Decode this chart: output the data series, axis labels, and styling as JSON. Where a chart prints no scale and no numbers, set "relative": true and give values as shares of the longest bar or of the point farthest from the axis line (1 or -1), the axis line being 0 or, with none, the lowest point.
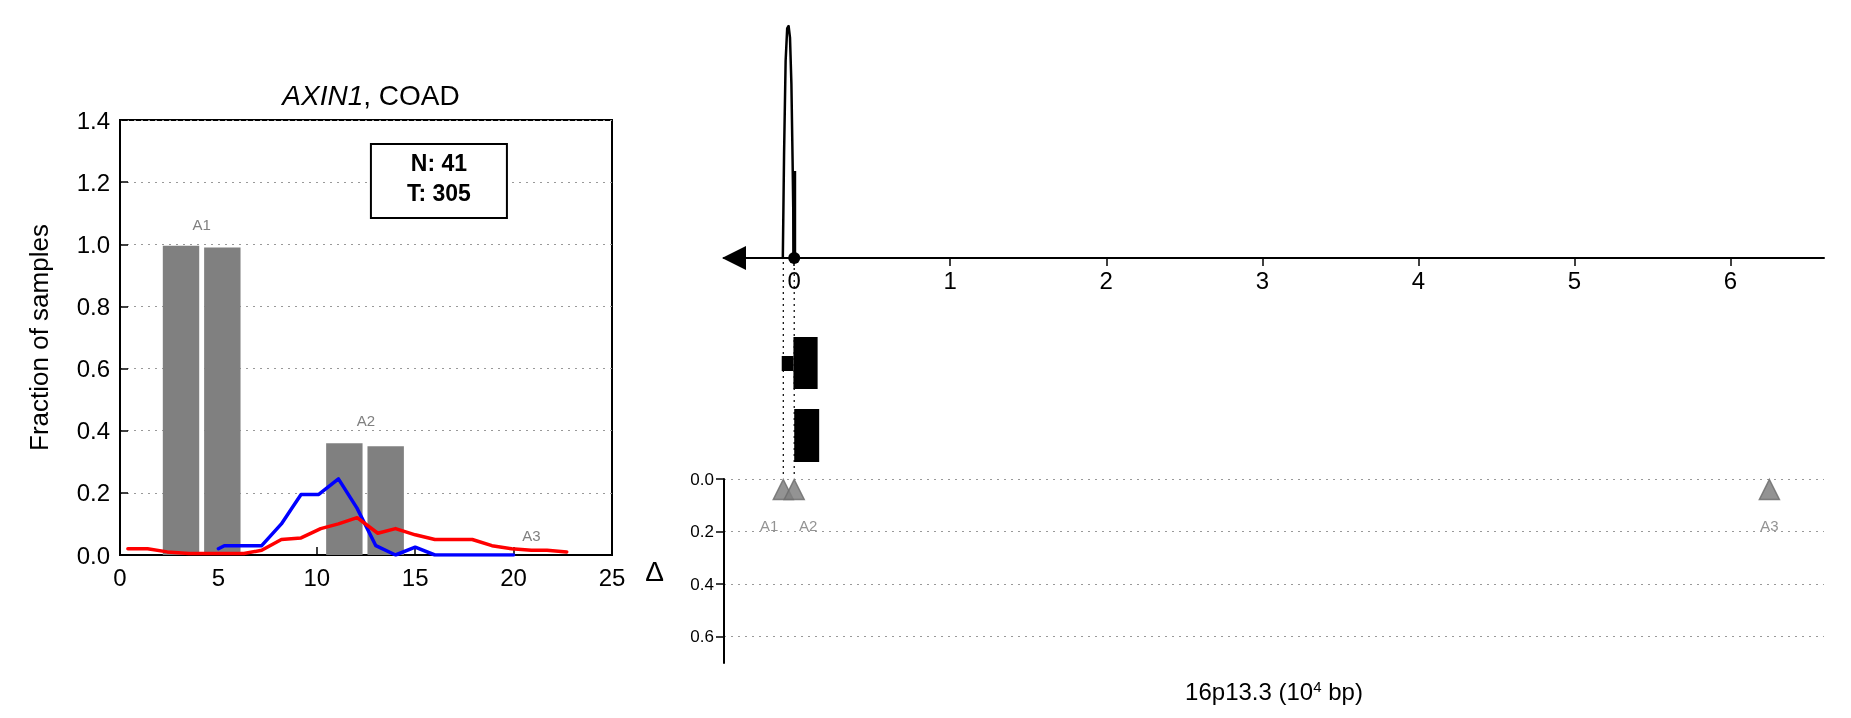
{
  "chart_data": [
    {
      "type": "bar",
      "title": "AXIN1, COAD",
      "ylabel": "Fraction of samples",
      "xlim": [
        0,
        25
      ],
      "xticks": [
        0,
        5,
        10,
        15,
        20,
        25
      ],
      "ylim": [
        0,
        1.4
      ],
      "yticks": [
        {
          "value": 0,
          "label": "0.0"
        },
        {
          "value": 0.2,
          "label": "0.2"
        },
        {
          "value": 0.4,
          "label": "0.4"
        },
        {
          "value": 0.6,
          "label": "0.6"
        },
        {
          "value": 0.8,
          "label": "0.8"
        },
        {
          "value": 1,
          "label": "1.0"
        },
        {
          "value": 1.2,
          "label": "1.2"
        },
        {
          "value": 1.4,
          "label": "1.4"
        }
      ],
      "grid": "y",
      "annotations": [
        "A1",
        "A2",
        "A3",
        "N: 41",
        "T: 305"
      ],
      "series": [
        {
          "color": "#808080",
          "x": [
            3.1,
            5.2,
            11.4,
            13.5
          ],
          "values": [
            0.995,
            0.99,
            0.36,
            0.35
          ]
        },
        {
          "type": "line",
          "color": "#0000ff",
          "x": [
            5,
            5.3,
            7.2,
            8.2,
            9.2,
            10.1,
            11.1,
            12.05,
            13,
            14,
            15,
            16,
            17,
            18,
            19,
            20
          ],
          "values": [
            0.02,
            0.03,
            0.03,
            0.1,
            0.195,
            0.195,
            0.245,
            0.15,
            0.03,
            0,
            0.025,
            0,
            0,
            0,
            0,
            0
          ]
        },
        {
          "type": "line",
          "color": "#ff0000",
          "x": [
            0.4,
            1.4,
            2.4,
            3.5,
            4.5,
            5.3,
            6.3,
            7.2,
            8.2,
            9.2,
            10.2,
            11.1,
            12.05,
            13.1,
            14,
            15,
            16,
            17,
            17.9,
            18.9,
            19.9,
            20.9,
            21.7,
            22.7
          ],
          "values": [
            0.02,
            0.02,
            0.01,
            0.005,
            0.005,
            0.005,
            0.005,
            0.015,
            0.05,
            0.055,
            0.085,
            0.1,
            0.12,
            0.07,
            0.085,
            0.065,
            0.05,
            0.05,
            0.05,
            0.03,
            0.02,
            0.015,
            0.015,
            0.01
          ]
        }
      ]
    },
    {
      "type": "line",
      "relative": true,
      "xlim": [
        -0.45,
        6.6
      ],
      "xticks": [
        0,
        1,
        2,
        3,
        4,
        5,
        6
      ],
      "tick_labels": "x",
      "series": [
        {
          "color": "#000000",
          "x": [
            -0.073,
            -0.065,
            -0.055,
            -0.045,
            -0.036,
            -0.027,
            -0.018,
            -0.01,
            -0.002
          ],
          "values": [
            0,
            0.45,
            0.85,
            0.99,
            1,
            0.95,
            0.75,
            0.4,
            0
          ]
        },
        {
          "type": "bar",
          "color": "#000000",
          "x": [
            0
          ],
          "values": [
            0.375
          ]
        }
      ]
    },
    {
      "type": "scatter",
      "xlabel": "16p13.3 (10$^{4}$ bp)",
      "ylabel": "Δ",
      "xlim": [
        -0.45,
        6.6
      ],
      "ylim": [
        0.7,
        0
      ],
      "yticks": [
        {
          "value": 0,
          "label": "0.0"
        },
        {
          "value": 0.2,
          "label": "0.2"
        },
        {
          "value": 0.4,
          "label": "0.4"
        },
        {
          "value": 0.6,
          "label": "0.6"
        }
      ],
      "grid": "y",
      "tick_labels": "y",
      "marker": "triangle",
      "series": [
        {
          "color": "#808080",
          "x": [
            -0.07,
            0,
            6.25
          ],
          "values": [
            0.04,
            0.04,
            0.04
          ],
          "value_labels": [
            "A1",
            "A2",
            "A3"
          ]
        }
      ]
    }
  ]
}
